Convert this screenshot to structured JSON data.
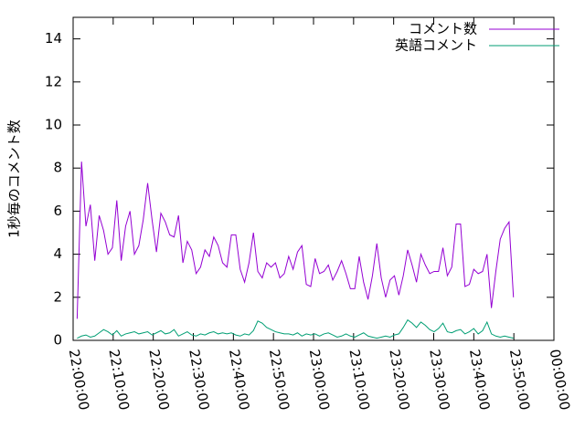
{
  "chart_data": {
    "type": "line",
    "ylabel": "1秒毎のコメント数",
    "xlim": [
      0,
      120
    ],
    "xticks": [
      {
        "value": 0,
        "label": "22:00:00"
      },
      {
        "value": 10,
        "label": "22:10:00"
      },
      {
        "value": 20,
        "label": "22:20:00"
      },
      {
        "value": 30,
        "label": "22:30:00"
      },
      {
        "value": 40,
        "label": "22:40:00"
      },
      {
        "value": 50,
        "label": "22:50:00"
      },
      {
        "value": 60,
        "label": "23:00:00"
      },
      {
        "value": 70,
        "label": "23:10:00"
      },
      {
        "value": 80,
        "label": "23:20:00"
      },
      {
        "value": 90,
        "label": "23:30:00"
      },
      {
        "value": 100,
        "label": "23:40:00"
      },
      {
        "value": 110,
        "label": "23:50:00"
      },
      {
        "value": 120,
        "label": "00:00:00"
      }
    ],
    "ylim": [
      0,
      15
    ],
    "yticks": [
      0,
      2,
      4,
      6,
      8,
      10,
      12,
      14
    ],
    "legend": "top-right",
    "x": [
      1,
      2.1,
      3.2,
      4.3,
      5.4,
      6.5,
      7.6,
      8.7,
      9.8,
      10.9,
      12,
      13.1,
      14.2,
      15.3,
      16.4,
      17.5,
      18.6,
      19.7,
      20.8,
      21.9,
      23,
      24.1,
      25.2,
      26.3,
      27.4,
      28.5,
      29.6,
      30.7,
      31.8,
      32.9,
      34,
      35.1,
      36.2,
      37.3,
      38.4,
      39.5,
      40.6,
      41.7,
      42.8,
      43.9,
      45,
      46.1,
      47.2,
      48.3,
      49.4,
      50.5,
      51.6,
      52.7,
      53.8,
      54.9,
      56,
      57.1,
      58.2,
      59.3,
      60.4,
      61.5,
      62.6,
      63.7,
      64.8,
      65.9,
      67,
      68.1,
      69.2,
      70.3,
      71.4,
      72.5,
      73.6,
      74.7,
      75.8,
      76.9,
      78,
      79.1,
      80.2,
      81.3,
      82.4,
      83.5,
      84.6,
      85.7,
      86.8,
      87.9,
      89,
      90.1,
      91.2,
      92.3,
      93.4,
      94.5,
      95.6,
      96.7,
      97.8,
      98.9,
      100,
      101.1,
      102.2,
      103.3,
      104.4,
      105.5,
      106.6,
      107.7,
      108.8,
      109.9
    ],
    "series": [
      {
        "name": "コメント数",
        "color": "#9400d3",
        "values": [
          1.0,
          8.3,
          5.3,
          6.3,
          3.7,
          5.8,
          5.1,
          4.0,
          4.3,
          6.5,
          3.7,
          5.3,
          6.0,
          4.0,
          4.4,
          5.6,
          7.3,
          5.6,
          4.1,
          5.9,
          5.5,
          4.9,
          4.8,
          5.8,
          3.6,
          4.6,
          4.2,
          3.1,
          3.4,
          4.2,
          3.9,
          4.8,
          4.4,
          3.6,
          3.4,
          4.9,
          4.9,
          3.3,
          2.7,
          3.6,
          5.0,
          3.2,
          2.9,
          3.6,
          3.4,
          3.6,
          2.9,
          3.1,
          3.9,
          3.3,
          4.1,
          4.4,
          2.6,
          2.5,
          3.8,
          3.1,
          3.2,
          3.5,
          2.8,
          3.2,
          3.7,
          3.1,
          2.4,
          2.4,
          3.9,
          2.7,
          1.9,
          3.0,
          4.5,
          2.9,
          2.0,
          2.8,
          3.0,
          2.1,
          3.0,
          4.2,
          3.5,
          2.7,
          4.0,
          3.5,
          3.1,
          3.2,
          3.2,
          4.3,
          3.0,
          3.4,
          5.4,
          5.4,
          2.5,
          2.6,
          3.3,
          3.1,
          3.2,
          4.0,
          1.5,
          3.2,
          4.7,
          5.2,
          5.5,
          2.0
        ]
      },
      {
        "name": "英語コメント",
        "color": "#009e73",
        "values": [
          0.1,
          0.2,
          0.25,
          0.15,
          0.2,
          0.35,
          0.5,
          0.4,
          0.25,
          0.45,
          0.2,
          0.3,
          0.35,
          0.4,
          0.3,
          0.35,
          0.4,
          0.25,
          0.35,
          0.45,
          0.3,
          0.35,
          0.5,
          0.2,
          0.3,
          0.4,
          0.25,
          0.2,
          0.3,
          0.25,
          0.35,
          0.4,
          0.3,
          0.35,
          0.3,
          0.35,
          0.25,
          0.2,
          0.3,
          0.25,
          0.45,
          0.9,
          0.8,
          0.6,
          0.5,
          0.4,
          0.35,
          0.3,
          0.3,
          0.25,
          0.35,
          0.2,
          0.3,
          0.25,
          0.3,
          0.2,
          0.3,
          0.35,
          0.25,
          0.15,
          0.2,
          0.3,
          0.2,
          0.15,
          0.25,
          0.35,
          0.2,
          0.15,
          0.1,
          0.15,
          0.2,
          0.15,
          0.25,
          0.3,
          0.6,
          0.95,
          0.8,
          0.6,
          0.85,
          0.7,
          0.5,
          0.4,
          0.55,
          0.8,
          0.4,
          0.35,
          0.45,
          0.5,
          0.3,
          0.4,
          0.55,
          0.3,
          0.45,
          0.85,
          0.3,
          0.2,
          0.15,
          0.2,
          0.15,
          0.1
        ]
      }
    ]
  }
}
